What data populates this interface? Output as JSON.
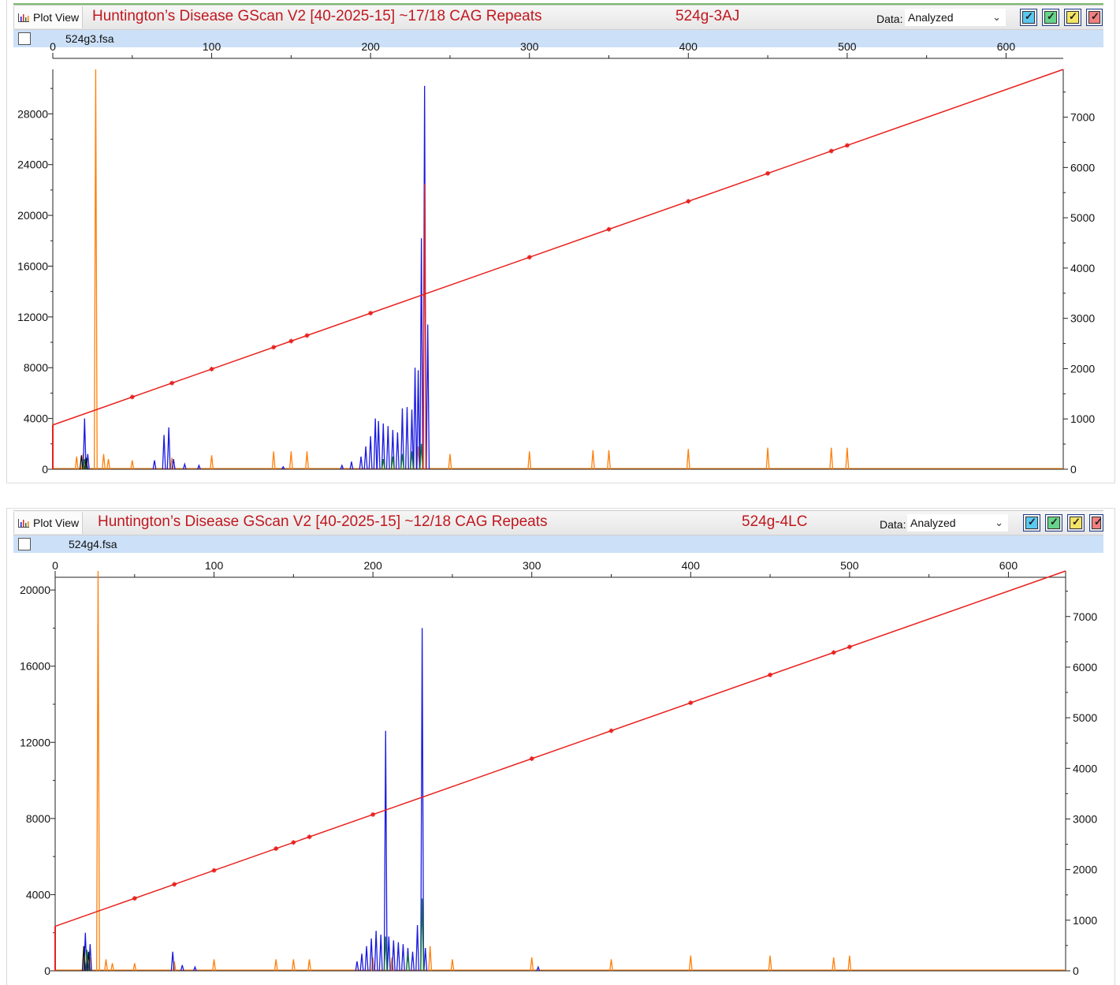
{
  "colors": {
    "title": "#c0181f",
    "size_curve": "#e8201c",
    "blue_dye": "#1a1ae0",
    "green_dye": "#127a2c",
    "black_dye": "#111111",
    "orange_dye": "#ff7f0a",
    "red_dye": "#e8201c",
    "file_bar": "#cce0f8"
  },
  "panels": [
    {
      "tab_label": "Plot View",
      "tab_icon": "bar-chart-icon",
      "title": "Huntington’s Disease GScan V2 [40-2025-15] ~17/18 CAG Repeats",
      "sample": "524g-3AJ",
      "data_label": "Data:",
      "data_value": "Analyzed",
      "file_name": "524g3.fsa",
      "dye_buttons": [
        {
          "color": "#5bc8f0"
        },
        {
          "color": "#66d48a"
        },
        {
          "color": "#f3e466"
        },
        {
          "color": "#f08080"
        }
      ]
    },
    {
      "tab_label": "Plot View",
      "tab_icon": "bar-chart-icon",
      "title": "Huntington’s Disease GScan V2 [40-2025-15] ~12/18 CAG Repeats",
      "sample": "524g-4LC",
      "data_label": "Data:",
      "data_value": "Analyzed",
      "file_name": "524g4.fsa",
      "dye_buttons": [
        {
          "color": "#5bc8f0"
        },
        {
          "color": "#66d48a"
        },
        {
          "color": "#f3e466"
        },
        {
          "color": "#f08080"
        }
      ]
    }
  ],
  "chart_data": [
    {
      "type": "line",
      "x_ticks": [
        "0",
        "100",
        "200",
        "300",
        "400",
        "500",
        "600"
      ],
      "xlim": [
        0,
        636
      ],
      "ylim_left": [
        0,
        31500
      ],
      "y_left_ticks": [
        "0",
        "4000",
        "8000",
        "12000",
        "16000",
        "20000",
        "24000",
        "28000"
      ],
      "ylim_right": [
        0,
        7950
      ],
      "y_right_ticks": [
        "0",
        "1000",
        "2000",
        "3000",
        "4000",
        "5000",
        "6000",
        "7000"
      ],
      "sizing_curve": {
        "color": "#e8201c",
        "start_y_right": 880,
        "end_y_right": 7950,
        "markers_x": [
          50,
          75,
          100,
          139,
          150,
          160,
          200,
          300,
          350,
          400,
          450,
          490,
          500
        ]
      },
      "series": [
        {
          "dye": "orange",
          "color": "#ff7f0a",
          "peaks": [
            [
              15,
              1000
            ],
            [
              19,
              1200
            ],
            [
              27,
              31500
            ],
            [
              32,
              1200
            ],
            [
              35,
              800
            ],
            [
              50,
              700
            ],
            [
              75,
              900
            ],
            [
              100,
              1100
            ],
            [
              139,
              1400
            ],
            [
              150,
              1400
            ],
            [
              160,
              1400
            ],
            [
              230,
              1800
            ],
            [
              250,
              1200
            ],
            [
              300,
              1400
            ],
            [
              340,
              1500
            ],
            [
              350,
              1500
            ],
            [
              400,
              1600
            ],
            [
              450,
              1700
            ],
            [
              490,
              1700
            ],
            [
              500,
              1700
            ]
          ]
        },
        {
          "dye": "blue",
          "color": "#1a1ae0",
          "peaks": [
            [
              20,
              4000
            ],
            [
              22,
              1200
            ],
            [
              64,
              700
            ],
            [
              70,
              2700
            ],
            [
              73,
              3300
            ],
            [
              76,
              800
            ],
            [
              83,
              400
            ],
            [
              92,
              300
            ],
            [
              145,
              200
            ],
            [
              182,
              300
            ],
            [
              188,
              600
            ],
            [
              194,
              1000
            ],
            [
              197,
              1800
            ],
            [
              200,
              2600
            ],
            [
              203,
              4000
            ],
            [
              205,
              3800
            ],
            [
              208,
              3600
            ],
            [
              211,
              3400
            ],
            [
              214,
              3100
            ],
            [
              217,
              2900
            ],
            [
              220,
              4800
            ],
            [
              223,
              4900
            ],
            [
              226,
              4700
            ],
            [
              228,
              8000
            ],
            [
              230,
              7800
            ],
            [
              232,
              18200
            ],
            [
              234,
              30200
            ],
            [
              236,
              11400
            ]
          ]
        },
        {
          "dye": "green",
          "color": "#127a2c",
          "peaks": [
            [
              20,
              800
            ],
            [
              208,
              800
            ],
            [
              214,
              1000
            ],
            [
              220,
              1200
            ],
            [
              226,
              1400
            ],
            [
              232,
              2000
            ]
          ]
        },
        {
          "dye": "black",
          "color": "#111111",
          "peaks": [
            [
              18,
              1100
            ],
            [
              21,
              900
            ]
          ]
        },
        {
          "dye": "red",
          "color": "#e8201c",
          "peaks": [
            [
              234,
              22500
            ]
          ]
        }
      ]
    },
    {
      "type": "line",
      "x_ticks": [
        "0",
        "100",
        "200",
        "300",
        "400",
        "500",
        "600"
      ],
      "xlim": [
        0,
        636
      ],
      "ylim_left": [
        0,
        21000
      ],
      "y_left_ticks": [
        "0",
        "4000",
        "8000",
        "12000",
        "16000",
        "20000"
      ],
      "ylim_right": [
        0,
        7900
      ],
      "y_right_ticks": [
        "0",
        "1000",
        "2000",
        "3000",
        "4000",
        "5000",
        "6000",
        "7000"
      ],
      "sizing_curve": {
        "color": "#e8201c",
        "start_y_right": 880,
        "end_y_right": 7900,
        "markers_x": [
          50,
          75,
          100,
          139,
          150,
          160,
          200,
          300,
          350,
          400,
          450,
          490,
          500
        ]
      },
      "series": [
        {
          "dye": "orange",
          "color": "#ff7f0a",
          "peaks": [
            [
              18,
              900
            ],
            [
              22,
              700
            ],
            [
              27,
              21000
            ],
            [
              32,
              600
            ],
            [
              36,
              400
            ],
            [
              50,
              400
            ],
            [
              75,
              500
            ],
            [
              100,
              600
            ],
            [
              139,
              600
            ],
            [
              150,
              600
            ],
            [
              160,
              600
            ],
            [
              200,
              700
            ],
            [
              212,
              700
            ],
            [
              236,
              1300
            ],
            [
              250,
              600
            ],
            [
              300,
              700
            ],
            [
              350,
              600
            ],
            [
              400,
              800
            ],
            [
              450,
              800
            ],
            [
              490,
              700
            ],
            [
              500,
              800
            ]
          ]
        },
        {
          "dye": "blue",
          "color": "#1a1ae0",
          "peaks": [
            [
              19,
              2000
            ],
            [
              22,
              1400
            ],
            [
              74,
              1000
            ],
            [
              80,
              300
            ],
            [
              88,
              200
            ],
            [
              190,
              500
            ],
            [
              193,
              900
            ],
            [
              196,
              1300
            ],
            [
              199,
              1700
            ],
            [
              202,
              2100
            ],
            [
              205,
              1900
            ],
            [
              208,
              12600
            ],
            [
              210,
              1800
            ],
            [
              213,
              1600
            ],
            [
              216,
              1500
            ],
            [
              219,
              1400
            ],
            [
              222,
              1200
            ],
            [
              225,
              1000
            ],
            [
              228,
              2400
            ],
            [
              231,
              18000
            ],
            [
              233,
              1200
            ],
            [
              304,
              200
            ]
          ]
        },
        {
          "dye": "green",
          "color": "#127a2c",
          "peaks": [
            [
              20,
              1100
            ],
            [
              208,
              1800
            ],
            [
              222,
              900
            ],
            [
              231,
              3800
            ]
          ]
        },
        {
          "dye": "black",
          "color": "#111111",
          "peaks": [
            [
              18,
              1300
            ],
            [
              21,
              1000
            ]
          ]
        }
      ]
    }
  ]
}
